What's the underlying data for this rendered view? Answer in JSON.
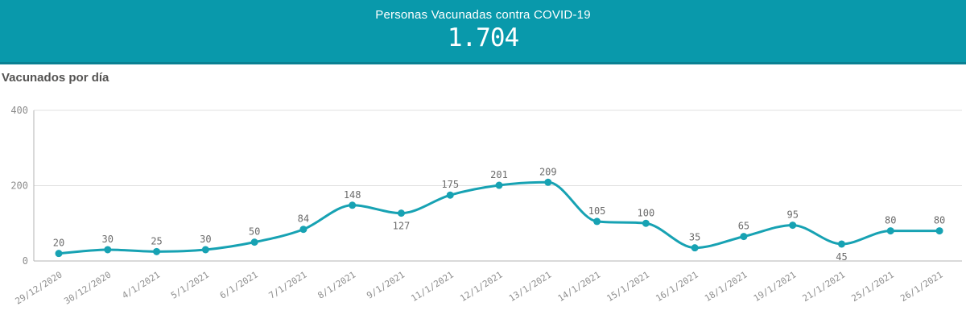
{
  "header": {
    "title": "Personas Vacunadas contra COVID-19",
    "value": "1.704",
    "background_color": "#0999ab"
  },
  "chart": {
    "title": "Vacunados por día"
  },
  "chart_data": {
    "type": "line",
    "title": "Vacunados por día",
    "x": [
      "29/12/2020",
      "30/12/2020",
      "4/1/2021",
      "5/1/2021",
      "6/1/2021",
      "7/1/2021",
      "8/1/2021",
      "9/1/2021",
      "11/1/2021",
      "12/1/2021",
      "13/1/2021",
      "14/1/2021",
      "15/1/2021",
      "16/1/2021",
      "18/1/2021",
      "19/1/2021",
      "21/1/2021",
      "25/1/2021",
      "26/1/2021"
    ],
    "values": [
      20,
      30,
      25,
      30,
      50,
      84,
      148,
      127,
      175,
      201,
      209,
      105,
      100,
      35,
      65,
      95,
      45,
      80,
      80
    ],
    "point_labels": [
      "20",
      "30",
      "25",
      "30",
      "50",
      "84",
      "148",
      "127",
      "175",
      "201",
      "209",
      "105",
      "100",
      "35",
      "65",
      "95",
      "45",
      "80",
      "80"
    ],
    "label_below_indices": [
      7,
      16
    ],
    "xlabel": "",
    "ylabel": "",
    "ylim": [
      0,
      400
    ],
    "yticks": [
      "0",
      "200",
      "400"
    ],
    "grid": true,
    "legend": "none",
    "line_color": "#17a2b3",
    "point_color": "#17a2b3",
    "grid_color": "#e0e0e0",
    "axis_color": "#b3b3b3",
    "tick_label_color": "#8e8e8e",
    "point_label_color": "#6b6b6b"
  }
}
